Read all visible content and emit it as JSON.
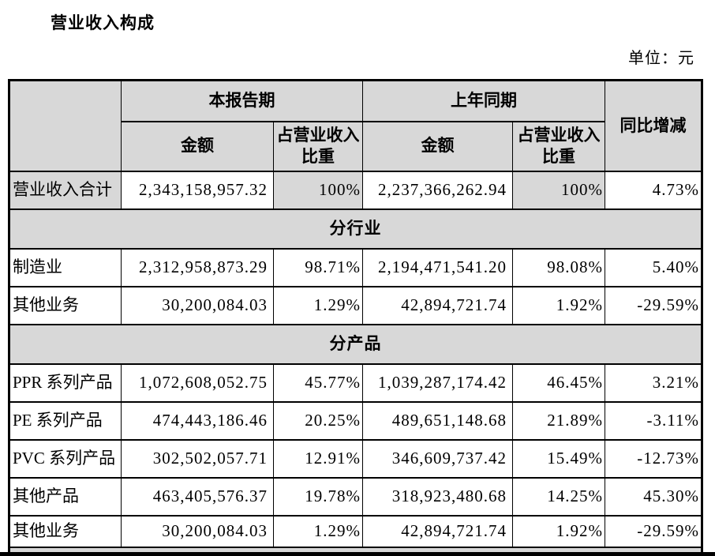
{
  "page": {
    "title": "营业收入构成",
    "unit_label": "单位：元"
  },
  "colors": {
    "header_fill": "#d8d8d8",
    "border": "#000000",
    "page_bg": "#ffffff"
  },
  "table": {
    "columns": {
      "current_period": "本报告期",
      "prior_period": "上年同期",
      "yoy": "同比增减",
      "amount": "金额",
      "share_of_revenue": "占营业收入比重"
    },
    "rows": [
      {
        "type": "data",
        "shaded": true,
        "label": "营业收入合计",
        "cur_amount": "2,343,158,957.32",
        "cur_share": "100%",
        "prior_amount": "2,237,366,262.94",
        "prior_share": "100%",
        "yoy": "4.73%"
      },
      {
        "type": "section",
        "label": "分行业"
      },
      {
        "type": "data",
        "shaded": false,
        "label": "制造业",
        "cur_amount": "2,312,958,873.29",
        "cur_share": "98.71%",
        "prior_amount": "2,194,471,541.20",
        "prior_share": "98.08%",
        "yoy": "5.40%"
      },
      {
        "type": "data",
        "shaded": false,
        "label": "其他业务",
        "cur_amount": "30,200,084.03",
        "cur_share": "1.29%",
        "prior_amount": "42,894,721.74",
        "prior_share": "1.92%",
        "yoy": "-29.59%"
      },
      {
        "type": "section",
        "label": "分产品"
      },
      {
        "type": "data",
        "shaded": false,
        "label": "PPR 系列产品",
        "cur_amount": "1,072,608,052.75",
        "cur_share": "45.77%",
        "prior_amount": "1,039,287,174.42",
        "prior_share": "46.45%",
        "yoy": "3.21%"
      },
      {
        "type": "data",
        "shaded": false,
        "label": "PE 系列产品",
        "cur_amount": "474,443,186.46",
        "cur_share": "20.25%",
        "prior_amount": "489,651,148.68",
        "prior_share": "21.89%",
        "yoy": "-3.11%"
      },
      {
        "type": "data",
        "shaded": false,
        "label": "PVC 系列产品",
        "cur_amount": "302,502,057.71",
        "cur_share": "12.91%",
        "prior_amount": "346,609,737.42",
        "prior_share": "15.49%",
        "yoy": "-12.73%"
      },
      {
        "type": "data",
        "shaded": false,
        "label": "其他产品",
        "cur_amount": "463,405,576.37",
        "cur_share": "19.78%",
        "prior_amount": "318,923,480.68",
        "prior_share": "14.25%",
        "yoy": "45.30%"
      },
      {
        "type": "data",
        "shaded": false,
        "label": "其他业务",
        "cur_amount": "30,200,084.03",
        "cur_share": "1.29%",
        "prior_amount": "42,894,721.74",
        "prior_share": "1.92%",
        "yoy": "-29.59%"
      }
    ]
  }
}
